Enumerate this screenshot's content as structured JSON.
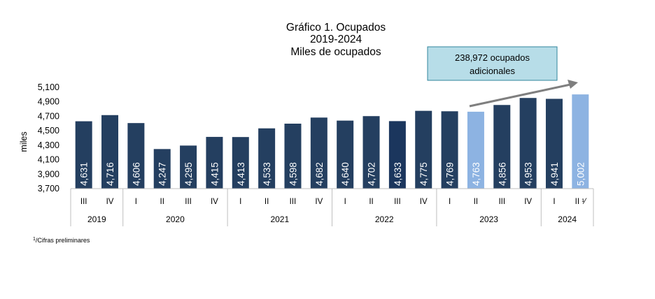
{
  "chart_data": {
    "type": "bar",
    "title_lines": [
      "Gráfico 1. Ocupados",
      "2019-2024",
      "Miles de ocupados"
    ],
    "ylabel": "miles",
    "ylim": [
      3700,
      5100
    ],
    "yticks": [
      "3,700",
      "3,900",
      "4,100",
      "4,300",
      "4,500",
      "4,700",
      "4,900",
      "5,100"
    ],
    "ytick_values": [
      3700,
      3900,
      4100,
      4300,
      4500,
      4700,
      4900,
      5100
    ],
    "quarters": [
      "III",
      "IV",
      "I",
      "II",
      "III",
      "IV",
      "I",
      "II",
      "III",
      "IV",
      "I",
      "II",
      "III",
      "IV",
      "I",
      "II",
      "III",
      "IV",
      "I",
      "II ¹⁄"
    ],
    "values": [
      4631,
      4716,
      4606,
      4247,
      4295,
      4415,
      4413,
      4533,
      4598,
      4682,
      4640,
      4702,
      4633,
      4775,
      4769,
      4763,
      4856,
      4953,
      4941,
      5002
    ],
    "value_labels": [
      "4,631",
      "4,716",
      "4,606",
      "4,247",
      "4,295",
      "4,415",
      "4,413",
      "4,533",
      "4,598",
      "4,682",
      "4,640",
      "4,702",
      "4,633",
      "4,775",
      "4,769",
      "4,763",
      "4,856",
      "4,953",
      "4,941",
      "5,002"
    ],
    "years": [
      {
        "label": "2019",
        "count": 2
      },
      {
        "label": "2020",
        "count": 4
      },
      {
        "label": "2021",
        "count": 4
      },
      {
        "label": "2022",
        "count": 4
      },
      {
        "label": "2023",
        "count": 4
      },
      {
        "label": "2024",
        "count": 2
      }
    ],
    "highlight_indices": [
      15,
      19
    ],
    "colors": {
      "bar": "#243f60",
      "bar_dark": "#1b365d",
      "highlight": "#8db3e2",
      "arrow": "#7f7f7f",
      "callout_fill": "#b7dde8",
      "callout_border": "#31859c",
      "axis": "#bfbfbf"
    },
    "callout": {
      "lines": [
        "238,972 ocupados",
        "adicionales"
      ]
    },
    "footnote": {
      "mark": "1",
      "text": "/Cifras preliminares"
    },
    "grid": false,
    "legend": "none"
  }
}
